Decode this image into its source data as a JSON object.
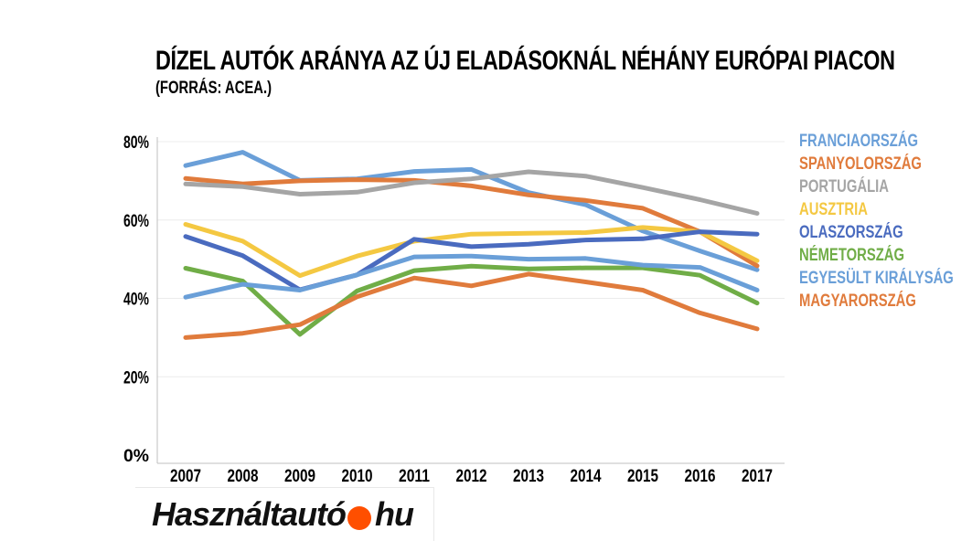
{
  "header": {
    "title": "DÍZEL AUTÓK ARÁNYA AZ ÚJ ELADÁSOKNÁL NÉHÁNY EURÓPAI PIACON",
    "subtitle": "(FORRÁS: ACEA.)"
  },
  "brand": {
    "name": "Használtautó",
    "suffix": "hu",
    "dot_color": "#ff4f00"
  },
  "chart_data": {
    "type": "line",
    "title": "DÍZEL AUTÓK ARÁNYA AZ ÚJ ELADÁSOKNÁL NÉHÁNY EURÓPAI PIACON",
    "subtitle": "(FORRÁS: ACEA.)",
    "xlabel": "",
    "ylabel": "",
    "categories": [
      "2007",
      "2008",
      "2009",
      "2010",
      "2011",
      "2012",
      "2013",
      "2014",
      "2015",
      "2016",
      "2017"
    ],
    "y_ticks": [
      0,
      20,
      40,
      60,
      80
    ],
    "y_tick_labels": [
      "0%",
      "20%",
      "40%",
      "60%",
      "80%"
    ],
    "ylim": [
      0,
      80
    ],
    "grid": true,
    "legend_position": "right",
    "series": [
      {
        "name": "FRANCIAORSZÁG",
        "color": "#6a9fd8",
        "values": [
          73.9,
          77.3,
          70.1,
          70.5,
          72.4,
          72.9,
          67,
          63.9,
          57.2,
          52.1,
          47.3
        ]
      },
      {
        "name": "SPANYOLORSZÁG",
        "color": "#e07b3c",
        "values": [
          70.6,
          69.2,
          70,
          70.3,
          70.1,
          68.7,
          66.4,
          65,
          63,
          57,
          48.3
        ]
      },
      {
        "name": "PORTUGÁLIA",
        "color": "#a5a5a5",
        "values": [
          69.2,
          68.5,
          66.6,
          67.1,
          69.5,
          70.5,
          72.3,
          71.2,
          68.3,
          65.2,
          61.7
        ]
      },
      {
        "name": "AUSZTRIA",
        "color": "#f4c842",
        "values": [
          58.9,
          54.6,
          45.8,
          50.8,
          54.6,
          56.4,
          56.6,
          56.8,
          58.1,
          57,
          49.6
        ]
      },
      {
        "name": "OLASZORSZÁG",
        "color": "#4a6bbf",
        "values": [
          55.8,
          50.9,
          42.2,
          46,
          55.1,
          53.2,
          53.8,
          54.9,
          55.2,
          57,
          56.4
        ]
      },
      {
        "name": "NÉMETORSZÁG",
        "color": "#70ad47",
        "values": [
          47.7,
          44.4,
          30.8,
          41.9,
          47.1,
          48.2,
          47.5,
          47.8,
          47.8,
          45.9,
          38.8
        ]
      },
      {
        "name": "EGYESÜLT KIRÁLYSÁG",
        "color": "#6a9fd8",
        "values": [
          40.3,
          43.6,
          42.1,
          46,
          50.6,
          50.8,
          50,
          50.2,
          48.5,
          47.9,
          42.1
        ]
      },
      {
        "name": "MAGYARORSZÁG",
        "color": "#e07b3c",
        "values": [
          30,
          31.1,
          33.3,
          40.4,
          45.2,
          43.2,
          46.2,
          44.2,
          42.1,
          36.3,
          32.2
        ]
      }
    ]
  }
}
